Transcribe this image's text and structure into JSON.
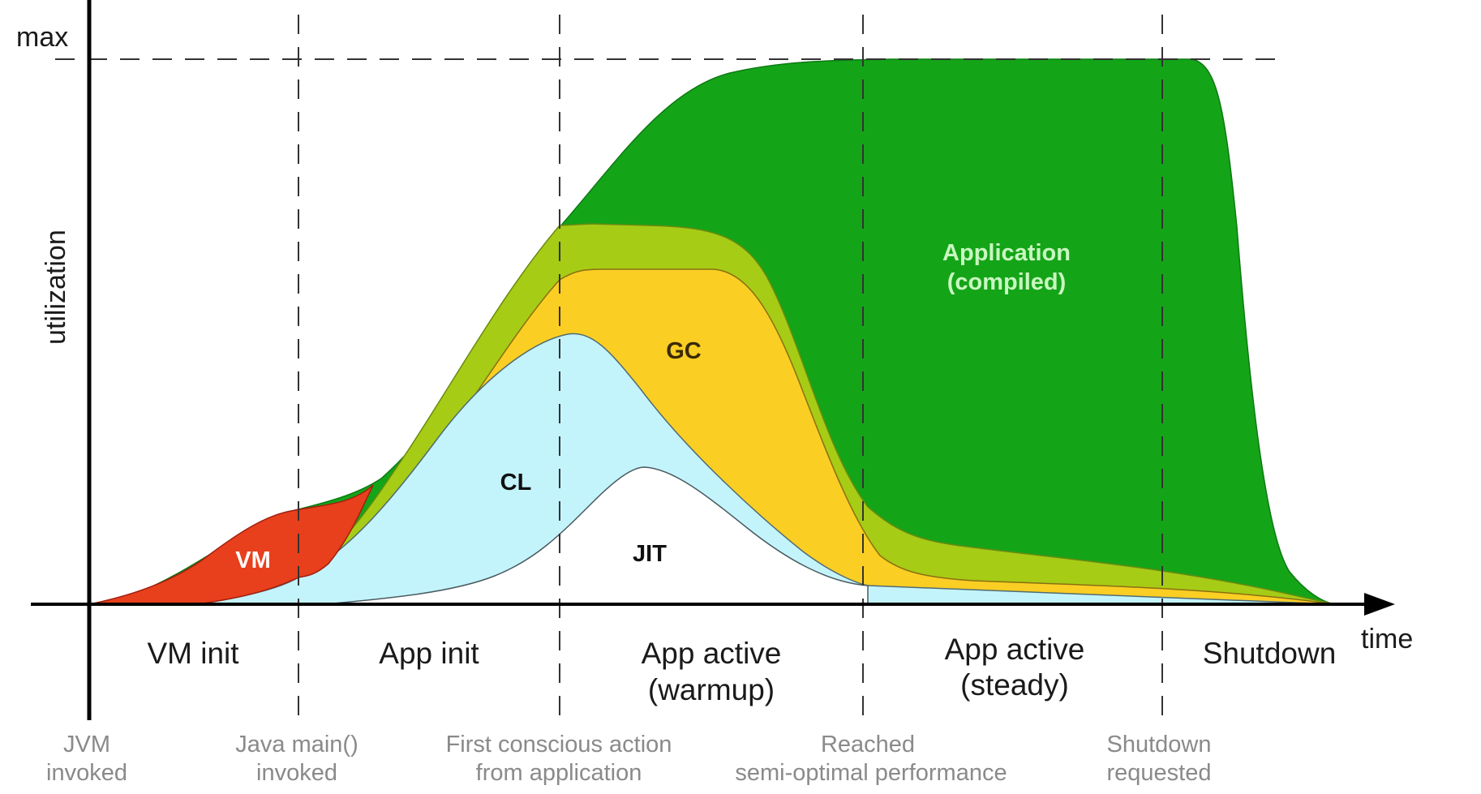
{
  "axes": {
    "y_label": "utilization",
    "x_label": "time",
    "max_label": "max"
  },
  "regions": {
    "vm": "VM",
    "cl": "CL",
    "gc": "GC",
    "jit": "JIT",
    "application_line1": "Application",
    "application_line2": "(compiled)"
  },
  "colors": {
    "vm": "#e8401c",
    "cl": "#c4f4fb",
    "gc": "#fbce24",
    "jit_band": "#a6cc16",
    "application": "#14a418",
    "jit_core": "#ffffff"
  },
  "phases": [
    {
      "line1": "VM init",
      "line2": ""
    },
    {
      "line1": "App init",
      "line2": ""
    },
    {
      "line1": "App active",
      "line2": "(warmup)"
    },
    {
      "line1": "App active",
      "line2": "(steady)"
    },
    {
      "line1": "Shutdown",
      "line2": ""
    }
  ],
  "milestones": [
    {
      "line1": "JVM",
      "line2": "invoked"
    },
    {
      "line1": "Java main()",
      "line2": "invoked"
    },
    {
      "line1": "First conscious action",
      "line2": "from application"
    },
    {
      "line1": "Reached",
      "line2": "semi-optimal performance"
    },
    {
      "line1": "Shutdown",
      "line2": "requested"
    }
  ]
}
